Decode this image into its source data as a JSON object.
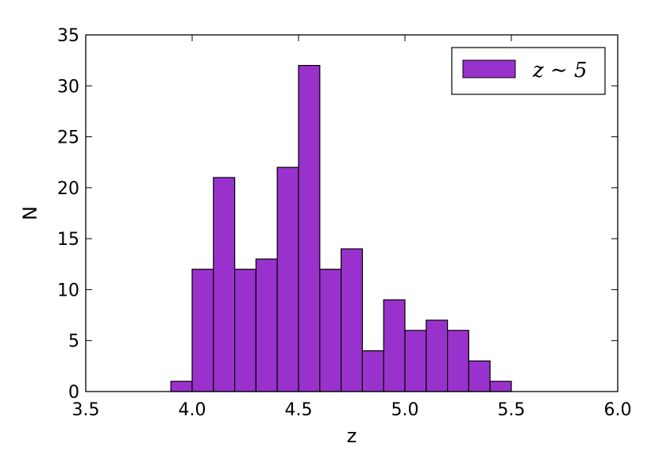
{
  "chart_data": {
    "type": "bar",
    "title": "",
    "xlabel": "z",
    "ylabel": "N",
    "xlim": [
      3.5,
      6.0
    ],
    "ylim": [
      0,
      35
    ],
    "xticks": [
      "3.5",
      "4.0",
      "4.5",
      "5.0",
      "5.5",
      "6.0"
    ],
    "yticks": [
      "0",
      "5",
      "10",
      "15",
      "20",
      "25",
      "30",
      "35"
    ],
    "bin_width": 0.1,
    "bins": [
      {
        "x": 3.9,
        "value": 1
      },
      {
        "x": 4.0,
        "value": 12
      },
      {
        "x": 4.1,
        "value": 21
      },
      {
        "x": 4.2,
        "value": 12
      },
      {
        "x": 4.3,
        "value": 13
      },
      {
        "x": 4.4,
        "value": 22
      },
      {
        "x": 4.5,
        "value": 32
      },
      {
        "x": 4.6,
        "value": 12
      },
      {
        "x": 4.7,
        "value": 14
      },
      {
        "x": 4.8,
        "value": 4
      },
      {
        "x": 4.9,
        "value": 9
      },
      {
        "x": 5.0,
        "value": 6
      },
      {
        "x": 5.1,
        "value": 7
      },
      {
        "x": 5.2,
        "value": 6
      },
      {
        "x": 5.3,
        "value": 3
      },
      {
        "x": 5.4,
        "value": 1
      }
    ],
    "series": [
      {
        "name": "z ∼ 5",
        "color": "#9932CC"
      }
    ],
    "legend_position": "top-right",
    "grid": false
  }
}
